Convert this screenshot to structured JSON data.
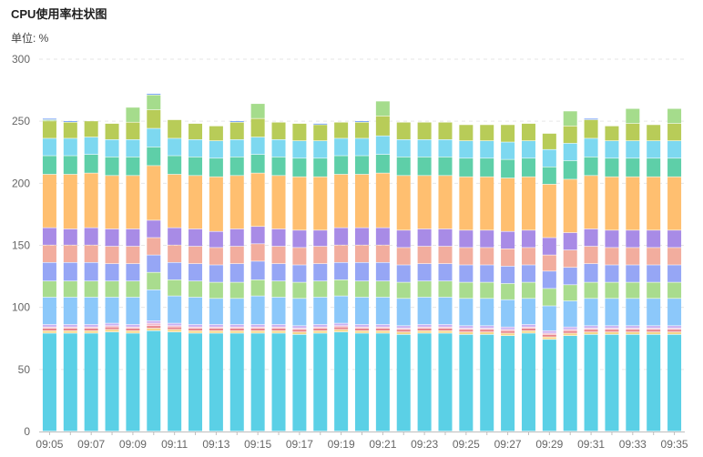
{
  "chart_data": {
    "type": "bar",
    "stacked": true,
    "title": "CPU使用率柱状图",
    "ylabel": "单位: %",
    "ylim": [
      0,
      300
    ],
    "yticks": [
      0,
      50,
      100,
      150,
      200,
      250,
      300
    ],
    "grid": true,
    "categories": [
      "09:05",
      "09:06",
      "09:07",
      "09:08",
      "09:09",
      "09:10",
      "09:11",
      "09:12",
      "09:13",
      "09:14",
      "09:15",
      "09:16",
      "09:17",
      "09:18",
      "09:19",
      "09:20",
      "09:21",
      "09:22",
      "09:23",
      "09:24",
      "09:25",
      "09:26",
      "09:27",
      "09:28",
      "09:29",
      "09:30",
      "09:31",
      "09:32",
      "09:33",
      "09:34",
      "09:35"
    ],
    "xtick_labels": [
      "09:05",
      "09:07",
      "09:09",
      "09:11",
      "09:13",
      "09:15",
      "09:17",
      "09:19",
      "09:21",
      "09:23",
      "09:25",
      "09:27",
      "09:29",
      "09:31",
      "09:33",
      "09:35"
    ],
    "series": [
      {
        "color": "#5bd0e6",
        "values": [
          79,
          79,
          79,
          80,
          79,
          81,
          80,
          79,
          79,
          79,
          79,
          79,
          78,
          79,
          80,
          79,
          79,
          78,
          79,
          79,
          78,
          78,
          77,
          79,
          74,
          77,
          78,
          78,
          78,
          78,
          78
        ]
      },
      {
        "color": "#f6d58a",
        "values": [
          2,
          2,
          2,
          2,
          2,
          2,
          2,
          2,
          2,
          2,
          2,
          2,
          2,
          2,
          2,
          2,
          2,
          2,
          2,
          2,
          2,
          2,
          2,
          2,
          2,
          2,
          2,
          2,
          2,
          2,
          2
        ]
      },
      {
        "color": "#e8848a",
        "values": [
          2,
          2,
          2,
          2,
          2,
          2,
          2,
          2,
          2,
          2,
          2,
          2,
          2,
          2,
          2,
          2,
          2,
          2,
          2,
          2,
          2,
          2,
          2,
          2,
          2,
          2,
          2,
          2,
          2,
          2,
          2
        ]
      },
      {
        "color": "#f3b8cf",
        "values": [
          1,
          1,
          1,
          1,
          1,
          2,
          1,
          1,
          1,
          1,
          1,
          1,
          1,
          1,
          1,
          1,
          1,
          1,
          1,
          1,
          1,
          1,
          1,
          1,
          1,
          1,
          1,
          1,
          1,
          1,
          1
        ]
      },
      {
        "color": "#c9b0f2",
        "values": [
          2,
          2,
          2,
          2,
          2,
          2,
          2,
          2,
          2,
          2,
          2,
          2,
          2,
          2,
          2,
          2,
          2,
          2,
          2,
          2,
          2,
          2,
          2,
          2,
          2,
          2,
          2,
          2,
          2,
          2,
          2
        ]
      },
      {
        "color": "#8cc8fa",
        "values": [
          22,
          22,
          22,
          21,
          22,
          25,
          22,
          22,
          21,
          21,
          23,
          22,
          22,
          22,
          22,
          22,
          22,
          22,
          22,
          22,
          22,
          22,
          22,
          21,
          20,
          21,
          22,
          22,
          22,
          22,
          22
        ]
      },
      {
        "color": "#a9dc8e",
        "values": [
          13,
          13,
          13,
          13,
          13,
          14,
          13,
          13,
          13,
          13,
          13,
          13,
          13,
          13,
          13,
          13,
          13,
          13,
          13,
          13,
          13,
          13,
          13,
          13,
          14,
          13,
          13,
          13,
          13,
          13,
          13
        ]
      },
      {
        "color": "#96a6f5",
        "values": [
          15,
          15,
          15,
          14,
          14,
          14,
          14,
          14,
          14,
          15,
          15,
          14,
          14,
          14,
          14,
          15,
          15,
          14,
          14,
          14,
          14,
          14,
          14,
          14,
          14,
          14,
          15,
          14,
          14,
          14,
          14
        ]
      },
      {
        "color": "#f2ad9e",
        "values": [
          14,
          14,
          14,
          14,
          14,
          14,
          14,
          14,
          14,
          14,
          14,
          14,
          14,
          14,
          14,
          14,
          14,
          14,
          14,
          14,
          14,
          14,
          14,
          14,
          13,
          14,
          14,
          14,
          14,
          14,
          14
        ]
      },
      {
        "color": "#a88be6",
        "values": [
          14,
          13,
          14,
          14,
          14,
          14,
          14,
          14,
          13,
          14,
          14,
          14,
          14,
          13,
          14,
          14,
          14,
          14,
          14,
          14,
          14,
          14,
          14,
          14,
          14,
          14,
          14,
          14,
          14,
          14,
          14
        ]
      },
      {
        "color": "#ffbf70",
        "values": [
          43,
          44,
          44,
          43,
          43,
          44,
          43,
          43,
          44,
          43,
          43,
          43,
          43,
          43,
          43,
          43,
          44,
          44,
          43,
          43,
          43,
          43,
          43,
          43,
          43,
          43,
          43,
          43,
          43,
          43,
          43
        ]
      },
      {
        "color": "#5ecfa8",
        "values": [
          15,
          15,
          15,
          15,
          15,
          15,
          15,
          15,
          15,
          15,
          15,
          15,
          15,
          15,
          15,
          15,
          15,
          15,
          15,
          15,
          15,
          15,
          15,
          15,
          14,
          15,
          15,
          15,
          15,
          15,
          15
        ]
      },
      {
        "color": "#7dd8f0",
        "values": [
          14,
          14,
          14,
          14,
          14,
          15,
          14,
          14,
          14,
          14,
          14,
          14,
          14,
          14,
          14,
          14,
          15,
          14,
          14,
          14,
          14,
          14,
          14,
          14,
          14,
          14,
          15,
          14,
          14,
          14,
          14
        ]
      },
      {
        "color": "#b8cc58",
        "values": [
          14,
          13,
          13,
          13,
          14,
          15,
          15,
          13,
          12,
          14,
          15,
          14,
          14,
          13,
          13,
          13,
          16,
          14,
          14,
          14,
          13,
          13,
          14,
          14,
          13,
          14,
          15,
          12,
          14,
          13,
          14
        ]
      },
      {
        "color": "#a5dc8c",
        "values": [
          1,
          0,
          0,
          0,
          12,
          12,
          0,
          0,
          0,
          0,
          12,
          0,
          0,
          0,
          0,
          0,
          12,
          0,
          0,
          0,
          0,
          0,
          0,
          0,
          0,
          12,
          0,
          0,
          12,
          0,
          12
        ]
      },
      {
        "color": "#5b8ff9",
        "values": [
          1,
          1,
          0,
          0,
          0,
          1,
          0,
          0,
          0,
          1,
          0,
          0,
          0,
          1,
          0,
          1,
          0,
          0,
          0,
          0,
          0,
          0,
          0,
          0,
          0,
          0,
          1,
          0,
          0,
          0,
          0
        ]
      }
    ]
  }
}
